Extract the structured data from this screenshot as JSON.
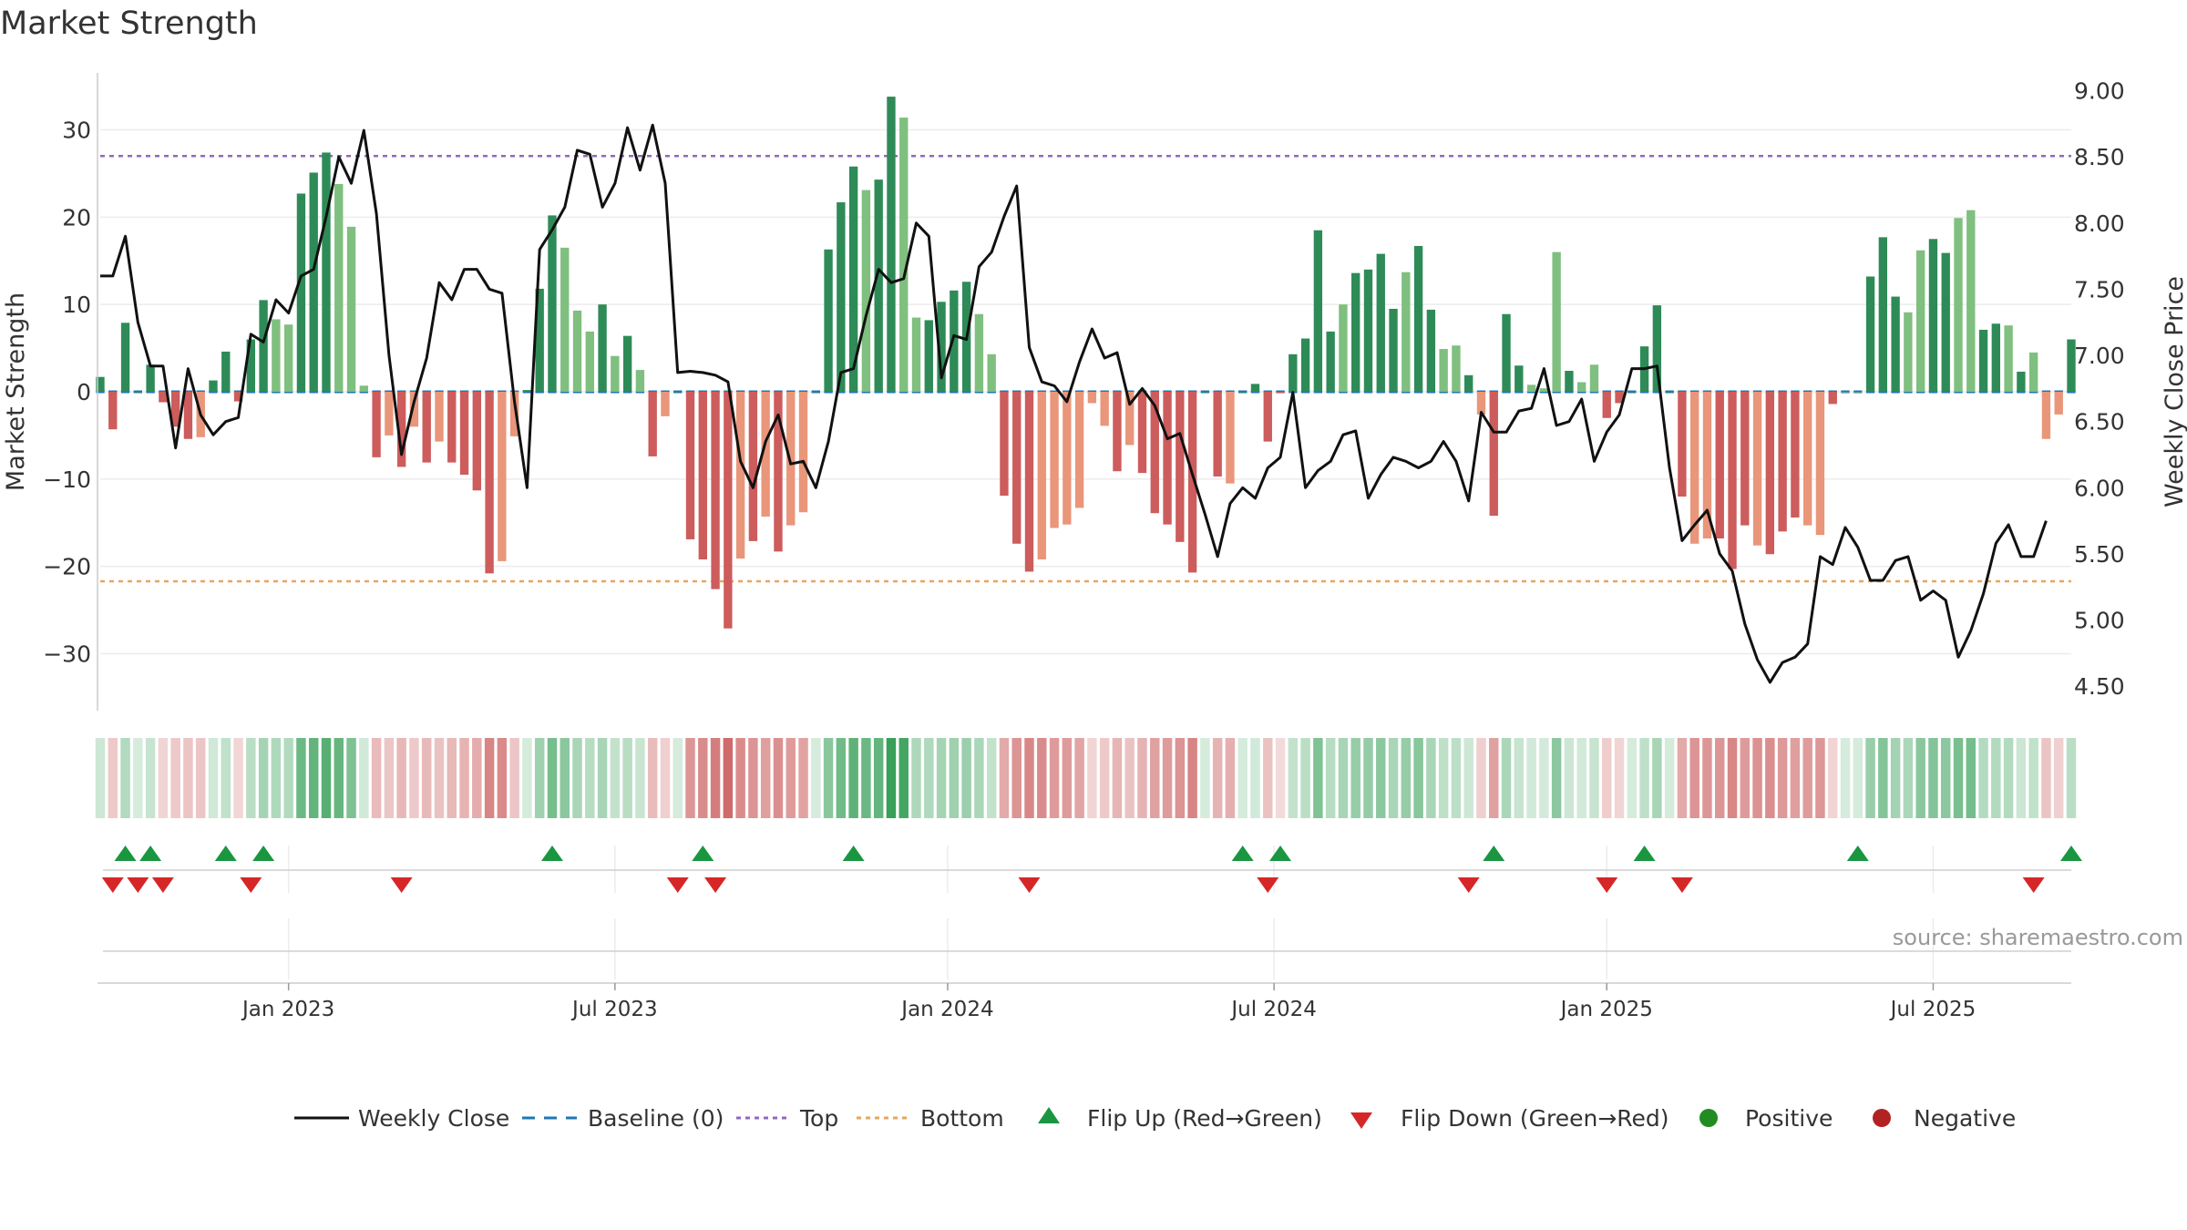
{
  "page_title": "Market Strength",
  "source_text": "source: sharemaestro.com",
  "colors": {
    "pos_dark": "#2e8b57",
    "pos_light": "#7fbf7f",
    "neg_dark": "#cd5c5c",
    "neg_light": "#e9967a",
    "price_line": "#111111",
    "baseline": "#1f77b4",
    "top": "#9467bd",
    "bottom": "#e8a65a",
    "flip_up": "#1a9641",
    "flip_down": "#d62728",
    "positive_dot": "#228b22",
    "negative_dot": "#b22222",
    "grid": "#ececec",
    "axis": "#cccccc"
  },
  "chart_data": {
    "type": "bar+line",
    "title": "Market Strength",
    "ylabel_left": "Market Strength",
    "ylabel_right": "Weekly Close Price",
    "ylim_left": [
      -36,
      36
    ],
    "ylim_right": [
      4.35,
      9.1
    ],
    "left_ticks": [
      30,
      20,
      10,
      0,
      -10,
      -20,
      -30
    ],
    "left_tick_labels": [
      "30",
      "20",
      "10",
      "0",
      "−10",
      "−20",
      "−30"
    ],
    "right_ticks": [
      9.0,
      8.5,
      8.0,
      7.5,
      7.0,
      6.5,
      6.0,
      5.5,
      5.0,
      4.5
    ],
    "right_tick_labels": [
      "9.00",
      "8.50",
      "8.00",
      "7.50",
      "7.00",
      "6.50",
      "6.00",
      "5.50",
      "5.00",
      "4.50"
    ],
    "x_tick_labels": [
      {
        "label": "Jan 2023",
        "week": 15
      },
      {
        "label": "Jul 2023",
        "week": 41
      },
      {
        "label": "Jan 2024",
        "week": 67.5
      },
      {
        "label": "Jul 2024",
        "week": 93.5
      },
      {
        "label": "Jan 2025",
        "week": 120
      },
      {
        "label": "Jul 2025",
        "week": 146
      }
    ],
    "top_line": 27,
    "bottom_line": -21.7,
    "baseline": 0,
    "strength": [
      1.7,
      -4.3,
      7.9,
      0,
      3.1,
      -1.2,
      -4,
      -5.4,
      -5.2,
      1.3,
      4.6,
      -1.1,
      6,
      10.5,
      8.3,
      7.7,
      22.7,
      25.1,
      27.4,
      23.8,
      18.9,
      0.7,
      -7.5,
      -5,
      -8.6,
      -4,
      -8.1,
      -5.7,
      -8.1,
      -9.5,
      -11.3,
      -20.8,
      -19.4,
      -5.1,
      0.2,
      11.8,
      20.2,
      16.5,
      9.3,
      6.9,
      10,
      4.1,
      6.4,
      2.5,
      -7.4,
      -2.8,
      0,
      -16.9,
      -19.2,
      -22.6,
      -27.1,
      -19.1,
      -17.1,
      -14.3,
      -18.3,
      -15.3,
      -13.8,
      0,
      16.3,
      21.7,
      25.8,
      23.1,
      24.3,
      33.8,
      31.4,
      8.5,
      8.2,
      10.3,
      11.6,
      12.6,
      8.9,
      4.3,
      -11.9,
      -17.4,
      -20.6,
      -19.2,
      -15.6,
      -15.2,
      -13.3,
      -1.3,
      -3.9,
      -9.1,
      -6.1,
      -9.3,
      -13.9,
      -15.2,
      -17.2,
      -20.7,
      0,
      -9.7,
      -10.5,
      0,
      0.9,
      -5.7,
      -0.1,
      4.3,
      6.1,
      18.5,
      6.9,
      10,
      13.6,
      14,
      15.8,
      9.5,
      13.7,
      16.7,
      9.4,
      4.9,
      5.3,
      1.9,
      -2.6,
      -14.2,
      8.9,
      3,
      0.8,
      0.4,
      16,
      2.4,
      1.1,
      3.1,
      -3,
      -1.3,
      0,
      5.2,
      9.9,
      0,
      -12,
      -17.4,
      -16.8,
      -16.8,
      -20.3,
      -15.3,
      -17.6,
      -18.6,
      -16,
      -14.4,
      -15.3,
      -16.4,
      -1.4,
      0,
      0,
      13.2,
      17.7,
      10.9,
      9.1,
      16.2,
      17.5,
      15.9,
      19.9,
      20.8,
      7.1,
      7.8,
      7.6,
      2.3,
      4.5,
      -5.4,
      -2.6,
      6
    ],
    "strength_shade": [
      "d",
      "d",
      "d",
      "d",
      "d",
      "d",
      "d",
      "d",
      "l",
      "d",
      "d",
      "d",
      "d",
      "d",
      "l",
      "l",
      "d",
      "d",
      "d",
      "l",
      "l",
      "l",
      "d",
      "l",
      "d",
      "l",
      "d",
      "l",
      "d",
      "d",
      "d",
      "d",
      "l",
      "l",
      "d",
      "d",
      "d",
      "l",
      "l",
      "l",
      "d",
      "l",
      "d",
      "l",
      "d",
      "l",
      "d",
      "d",
      "d",
      "d",
      "d",
      "l",
      "d",
      "l",
      "d",
      "l",
      "l",
      "d",
      "d",
      "d",
      "d",
      "l",
      "d",
      "d",
      "l",
      "l",
      "d",
      "d",
      "d",
      "d",
      "l",
      "l",
      "d",
      "d",
      "d",
      "l",
      "l",
      "l",
      "l",
      "l",
      "l",
      "d",
      "l",
      "d",
      "d",
      "d",
      "d",
      "d",
      "d",
      "d",
      "l",
      "d",
      "d",
      "d",
      "d",
      "d",
      "d",
      "d",
      "d",
      "l",
      "d",
      "d",
      "d",
      "d",
      "l",
      "d",
      "d",
      "l",
      "l",
      "d",
      "l",
      "d",
      "d",
      "d",
      "l",
      "l",
      "l",
      "d",
      "l",
      "l",
      "d",
      "d",
      "d",
      "d",
      "d",
      "d",
      "d",
      "l",
      "l",
      "d",
      "d",
      "d",
      "l",
      "d",
      "d",
      "d",
      "l",
      "l",
      "d",
      "l",
      "l",
      "d",
      "d",
      "d",
      "l",
      "l",
      "d",
      "d",
      "l",
      "l",
      "d",
      "d",
      "l",
      "d",
      "l",
      "l",
      "l",
      "d",
      "d",
      "l",
      "d"
    ],
    "weekly_close": [
      7.6,
      7.6,
      7.9,
      7.25,
      6.92,
      6.92,
      6.3,
      6.9,
      6.55,
      6.4,
      6.5,
      6.53,
      7.16,
      7.1,
      7.42,
      7.32,
      7.6,
      7.65,
      8.05,
      8.5,
      8.3,
      8.7,
      8.07,
      7.0,
      6.25,
      6.65,
      6.98,
      7.55,
      7.42,
      7.65,
      7.65,
      7.5,
      7.47,
      6.65,
      6.0,
      7.8,
      7.95,
      8.12,
      8.55,
      8.52,
      8.12,
      8.3,
      8.72,
      8.4,
      8.74,
      8.3,
      6.87,
      6.88,
      6.87,
      6.85,
      6.8,
      6.2,
      6.0,
      6.35,
      6.55,
      6.18,
      6.2,
      6.0,
      6.35,
      6.87,
      6.9,
      7.3,
      7.65,
      7.55,
      7.58,
      8.0,
      7.9,
      6.83,
      7.15,
      7.12,
      7.67,
      7.78,
      8.05,
      8.28,
      7.06,
      6.8,
      6.77,
      6.65,
      6.95,
      7.2,
      6.98,
      7.02,
      6.63,
      6.75,
      6.62,
      6.37,
      6.41,
      6.1,
      5.8,
      5.48,
      5.88,
      6.0,
      5.92,
      6.15,
      6.23,
      6.72,
      6.0,
      6.13,
      6.2,
      6.4,
      6.43,
      5.92,
      6.1,
      6.23,
      6.2,
      6.15,
      6.2,
      6.35,
      6.2,
      5.9,
      6.57,
      6.42,
      6.42,
      6.58,
      6.6,
      6.9,
      6.47,
      6.5,
      6.67,
      6.2,
      6.42,
      6.55,
      6.9,
      6.9,
      6.92,
      6.15,
      5.6,
      5.72,
      5.83,
      5.5,
      5.37,
      4.97,
      4.7,
      4.53,
      4.68,
      4.72,
      4.82,
      5.48,
      5.42,
      5.7,
      5.55,
      5.3,
      5.3,
      5.45,
      5.48,
      5.15,
      5.22,
      5.15,
      4.72,
      4.92,
      5.2,
      5.58,
      5.72,
      5.48,
      5.48,
      5.75
    ],
    "flip_up_weeks": [
      2,
      4,
      10,
      13,
      36,
      48,
      60,
      91,
      94,
      111,
      123,
      140,
      157
    ],
    "flip_down_weeks": [
      1,
      3,
      5,
      12,
      24,
      46,
      49,
      74,
      93,
      109,
      120,
      126,
      154
    ],
    "x_range_weeks": [
      0,
      157
    ],
    "legend": [
      "Weekly Close",
      "Baseline (0)",
      "Top",
      "Bottom",
      "Flip Up (Red→Green)",
      "Flip Down (Green→Red)",
      "Positive",
      "Negative"
    ]
  }
}
